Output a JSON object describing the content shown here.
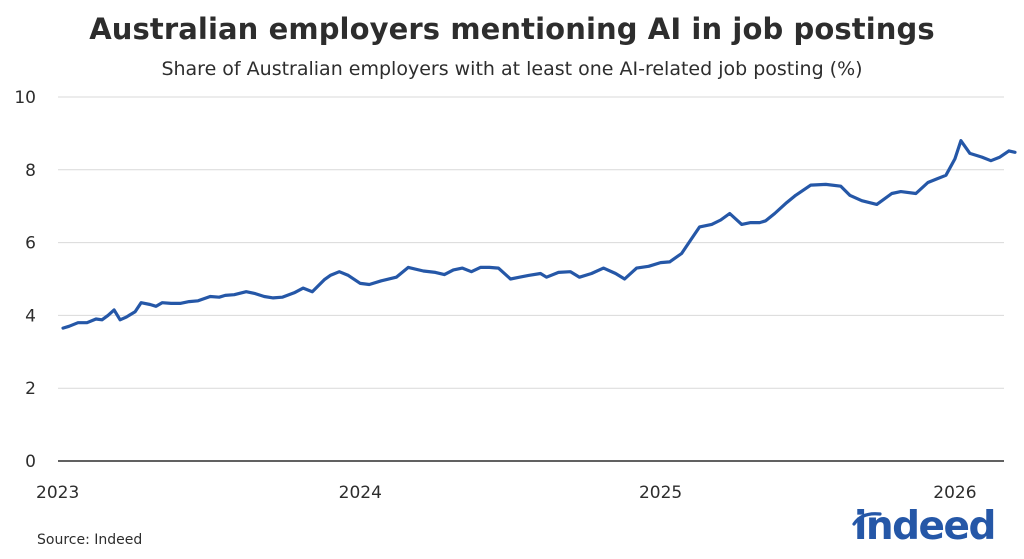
{
  "header": {
    "title": "Australian employers mentioning AI in job postings",
    "subtitle": "Share of Australian employers with at least one AI-related job posting (%)"
  },
  "footer": {
    "source": "Source: Indeed",
    "logo_text": "indeed"
  },
  "colors": {
    "line": "#2557a7",
    "grid": "#d9d9d9",
    "axis": "#2d2d2d",
    "text": "#2d2d2d"
  },
  "chart_data": {
    "type": "line",
    "title": "Australian employers mentioning AI in job postings",
    "subtitle": "Share of Australian employers with at least one AI-related job posting (%)",
    "xlabel": "",
    "ylabel": "",
    "ylim": [
      0,
      10
    ],
    "yticks": [
      0,
      2,
      4,
      6,
      8,
      10
    ],
    "xticks": [
      "2023",
      "2024",
      "2025",
      "2026"
    ],
    "grid": true,
    "legend": null,
    "series": [
      {
        "name": "Share of Australian employers with AI-related job posting (%)",
        "x": [
          2023.01,
          2023.03,
          2023.06,
          2023.09,
          2023.12,
          2023.14,
          2023.16,
          2023.18,
          2023.2,
          2023.22,
          2023.25,
          2023.27,
          2023.3,
          2023.32,
          2023.34,
          2023.37,
          2023.4,
          2023.43,
          2023.46,
          2023.5,
          2023.53,
          2023.55,
          2023.58,
          2023.62,
          2023.65,
          2023.68,
          2023.71,
          2023.74,
          2023.78,
          2023.81,
          2023.84,
          2023.88,
          2023.9,
          2023.93,
          2023.96,
          2024.0,
          2024.03,
          2024.07,
          2024.12,
          2024.16,
          2024.21,
          2024.25,
          2024.28,
          2024.31,
          2024.34,
          2024.37,
          2024.4,
          2024.43,
          2024.46,
          2024.5,
          2024.53,
          2024.56,
          2024.6,
          2024.62,
          2024.66,
          2024.7,
          2024.73,
          2024.77,
          2024.81,
          2024.85,
          2024.88,
          2024.92,
          2024.96,
          2025.0,
          2025.03,
          2025.07,
          2025.1,
          2025.13,
          2025.17,
          2025.2,
          2025.23,
          2025.27,
          2025.3,
          2025.33,
          2025.35,
          2025.38,
          2025.42,
          2025.45,
          2025.5,
          2025.55,
          2025.6,
          2025.63,
          2025.67,
          2025.72,
          2025.77,
          2025.8,
          2025.85,
          2025.89,
          2025.92,
          2025.95,
          2025.98,
          2026.0,
          2026.03,
          2026.07,
          2026.1,
          2026.13,
          2026.16,
          2026.18
        ],
        "values": [
          3.65,
          3.7,
          3.8,
          3.8,
          3.9,
          3.88,
          4.0,
          4.15,
          3.88,
          3.95,
          4.1,
          4.35,
          4.3,
          4.25,
          4.35,
          4.33,
          4.33,
          4.38,
          4.4,
          4.52,
          4.5,
          4.55,
          4.57,
          4.65,
          4.6,
          4.52,
          4.48,
          4.5,
          4.62,
          4.75,
          4.65,
          4.98,
          5.1,
          5.2,
          5.1,
          4.88,
          4.85,
          4.95,
          5.05,
          5.32,
          5.22,
          5.18,
          5.12,
          5.25,
          5.3,
          5.2,
          5.32,
          5.32,
          5.3,
          5.0,
          5.05,
          5.1,
          5.15,
          5.05,
          5.18,
          5.2,
          5.05,
          5.15,
          5.3,
          5.15,
          5.0,
          5.3,
          5.35,
          5.45,
          5.47,
          5.7,
          6.07,
          6.43,
          6.5,
          6.62,
          6.8,
          6.5,
          6.55,
          6.55,
          6.6,
          6.8,
          7.1,
          7.3,
          7.58,
          7.6,
          7.55,
          7.3,
          7.15,
          7.05,
          7.35,
          7.4,
          7.35,
          7.65,
          7.75,
          7.85,
          8.3,
          8.8,
          8.45,
          8.35,
          8.25,
          8.35,
          8.52,
          8.48
        ]
      }
    ]
  }
}
